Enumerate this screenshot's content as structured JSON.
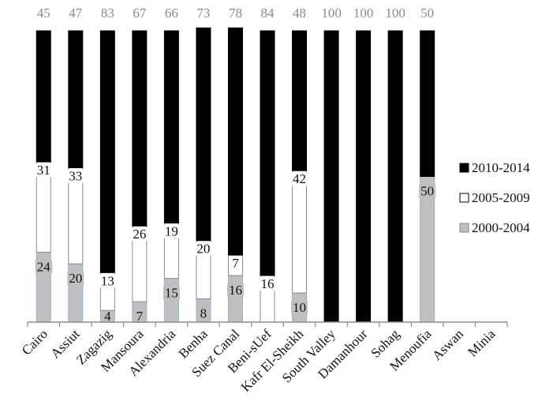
{
  "chart_data": {
    "type": "bar",
    "stacked": true,
    "normalized_percent": true,
    "categories": [
      "Cairo",
      "Assiut",
      "Zagazig",
      "Mansoura",
      "Alexandria",
      "Benha",
      "Suez Canal",
      "Beni-sUef",
      "Kafr El-Sheikh",
      "South Valley",
      "Damanhour",
      "Sohag",
      "Menoufia",
      "Aswan",
      "Minia"
    ],
    "series": [
      {
        "name": "2000-2004",
        "color": "#bfbfbf",
        "values": [
          24,
          20,
          4,
          7,
          15,
          8,
          16,
          0,
          10,
          0,
          0,
          0,
          50,
          0,
          0
        ],
        "labels": [
          "24",
          "20",
          "4",
          "7",
          "15",
          "8",
          "16",
          "",
          "10",
          "",
          "",
          "",
          "50",
          "",
          ""
        ]
      },
      {
        "name": "2005-2009",
        "color": "#ffffff",
        "values": [
          31,
          33,
          13,
          26,
          19,
          20,
          7,
          16,
          42,
          0,
          0,
          0,
          0,
          0,
          0
        ],
        "labels": [
          "31",
          "33",
          "13",
          "26",
          "19",
          "20",
          "7",
          "16",
          "42",
          "",
          "",
          "",
          "",
          "",
          ""
        ]
      },
      {
        "name": "2010-2014",
        "color": "#000000",
        "values": [
          45,
          47,
          83,
          67,
          66,
          73,
          78,
          84,
          48,
          100,
          100,
          100,
          50,
          0,
          0
        ],
        "labels": [
          "45",
          "47",
          "83",
          "67",
          "66",
          "73",
          "78",
          "84",
          "48",
          "100",
          "100",
          "100",
          "50",
          "",
          ""
        ]
      }
    ],
    "legend": {
      "position": "right",
      "order": [
        "2010-2014",
        "2005-2009",
        "2000-2004"
      ]
    },
    "ylim": [
      0,
      100
    ],
    "grid": false,
    "title": "",
    "xlabel": "",
    "ylabel": ""
  }
}
